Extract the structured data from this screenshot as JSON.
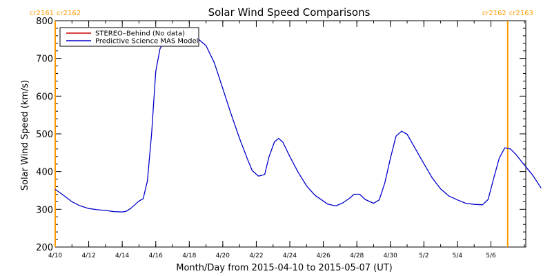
{
  "chart_data": {
    "type": "line",
    "title": "Solar Wind Speed Comparisons",
    "xlabel": "Month/Day from 2015-04-10 to 2015-05-07 (UT)",
    "ylabel": "Solar Wind Speed (km/s)",
    "xlim": [
      "2015-04-10",
      "2015-05-07"
    ],
    "ylim": [
      200,
      800
    ],
    "x_tick_labels": [
      {
        "date": "2015-04-10",
        "label": "4/10"
      },
      {
        "date": "2015-04-12",
        "label": "4/12"
      },
      {
        "date": "2015-04-14",
        "label": "4/14"
      },
      {
        "date": "2015-04-16",
        "label": "4/16"
      },
      {
        "date": "2015-04-18",
        "label": "4/18"
      },
      {
        "date": "2015-04-20",
        "label": "4/20"
      },
      {
        "date": "2015-04-22",
        "label": "4/22"
      },
      {
        "date": "2015-04-24",
        "label": "4/24"
      },
      {
        "date": "2015-04-26",
        "label": "4/26"
      },
      {
        "date": "2015-04-28",
        "label": "4/28"
      },
      {
        "date": "2015-04-30",
        "label": "4/30"
      },
      {
        "date": "2015-05-02",
        "label": "5/2"
      },
      {
        "date": "2015-05-04",
        "label": "5/4"
      },
      {
        "date": "2015-05-06",
        "label": "5/6"
      }
    ],
    "y_ticks": [
      200,
      300,
      400,
      500,
      600,
      700,
      800
    ],
    "grid": false,
    "legend_placement": "top-left",
    "carrington_markers": [
      {
        "date": "2015-04-10",
        "left_label": "cr2161",
        "right_label": "cr2162",
        "color": "#ff9900"
      },
      {
        "date": "2015-05-07",
        "left_label": "cr2162",
        "right_label": "cr2163",
        "color": "#ff9900"
      }
    ],
    "series": [
      {
        "name": "STEREO–Behind (No data)",
        "color": "#cc0000",
        "points": []
      },
      {
        "name": "Predictive Science MAS Model",
        "color": "#0000cc",
        "points": [
          [
            "2015-04-10 00:00",
            353
          ],
          [
            "2015-04-10 12:00",
            337
          ],
          [
            "2015-04-11 00:00",
            320
          ],
          [
            "2015-04-11 12:00",
            309
          ],
          [
            "2015-04-12 00:00",
            302
          ],
          [
            "2015-04-12 12:00",
            299
          ],
          [
            "2015-04-13 00:00",
            297
          ],
          [
            "2015-04-13 12:00",
            294
          ],
          [
            "2015-04-14 00:00",
            293
          ],
          [
            "2015-04-14 06:00",
            295
          ],
          [
            "2015-04-14 12:00",
            302
          ],
          [
            "2015-04-14 18:00",
            312
          ],
          [
            "2015-04-15 00:00",
            322
          ],
          [
            "2015-04-15 06:00",
            328
          ],
          [
            "2015-04-15 12:00",
            375
          ],
          [
            "2015-04-15 18:00",
            500
          ],
          [
            "2015-04-16 00:00",
            665
          ],
          [
            "2015-04-16 06:00",
            725
          ],
          [
            "2015-04-16 12:00",
            748
          ],
          [
            "2015-04-17 00:00",
            756
          ],
          [
            "2015-04-17 12:00",
            760
          ],
          [
            "2015-04-18 00:00",
            758
          ],
          [
            "2015-04-18 12:00",
            753
          ],
          [
            "2015-04-19 00:00",
            734
          ],
          [
            "2015-04-19 12:00",
            688
          ],
          [
            "2015-04-20 00:00",
            620
          ],
          [
            "2015-04-20 12:00",
            552
          ],
          [
            "2015-04-21 00:00",
            488
          ],
          [
            "2015-04-21 12:00",
            430
          ],
          [
            "2015-04-21 18:00",
            403
          ],
          [
            "2015-04-22 03:00",
            388
          ],
          [
            "2015-04-22 12:00",
            392
          ],
          [
            "2015-04-22 18:00",
            438
          ],
          [
            "2015-04-23 02:00",
            479
          ],
          [
            "2015-04-23 08:00",
            488
          ],
          [
            "2015-04-23 14:00",
            478
          ],
          [
            "2015-04-24 00:00",
            440
          ],
          [
            "2015-04-24 12:00",
            398
          ],
          [
            "2015-04-25 00:00",
            362
          ],
          [
            "2015-04-25 12:00",
            337
          ],
          [
            "2015-04-26 00:00",
            322
          ],
          [
            "2015-04-26 06:00",
            314
          ],
          [
            "2015-04-26 18:00",
            309
          ],
          [
            "2015-04-27 04:00",
            317
          ],
          [
            "2015-04-27 14:00",
            330
          ],
          [
            "2015-04-27 20:00",
            340
          ],
          [
            "2015-04-28 04:00",
            340
          ],
          [
            "2015-04-28 12:00",
            326
          ],
          [
            "2015-04-29 00:00",
            316
          ],
          [
            "2015-04-29 08:00",
            325
          ],
          [
            "2015-04-29 16:00",
            370
          ],
          [
            "2015-04-30 00:00",
            435
          ],
          [
            "2015-04-30 08:00",
            494
          ],
          [
            "2015-04-30 16:00",
            507
          ],
          [
            "2015-05-01 00:00",
            499
          ],
          [
            "2015-05-01 12:00",
            460
          ],
          [
            "2015-05-02 00:00",
            421
          ],
          [
            "2015-05-02 12:00",
            383
          ],
          [
            "2015-05-03 00:00",
            354
          ],
          [
            "2015-05-03 12:00",
            335
          ],
          [
            "2015-05-04 00:00",
            325
          ],
          [
            "2015-05-04 12:00",
            316
          ],
          [
            "2015-05-05 00:00",
            313
          ],
          [
            "2015-05-05 12:00",
            312
          ],
          [
            "2015-05-05 20:00",
            326
          ],
          [
            "2015-05-06 04:00",
            382
          ],
          [
            "2015-05-06 12:00",
            436
          ],
          [
            "2015-05-06 20:00",
            463
          ],
          [
            "2015-05-07 04:00",
            460
          ],
          [
            "2015-05-07 12:00",
            445
          ],
          [
            "2015-05-08 00:00",
            417
          ],
          [
            "2015-05-08 12:00",
            390
          ],
          [
            "2015-05-09 00:00",
            356
          ]
        ]
      }
    ]
  }
}
